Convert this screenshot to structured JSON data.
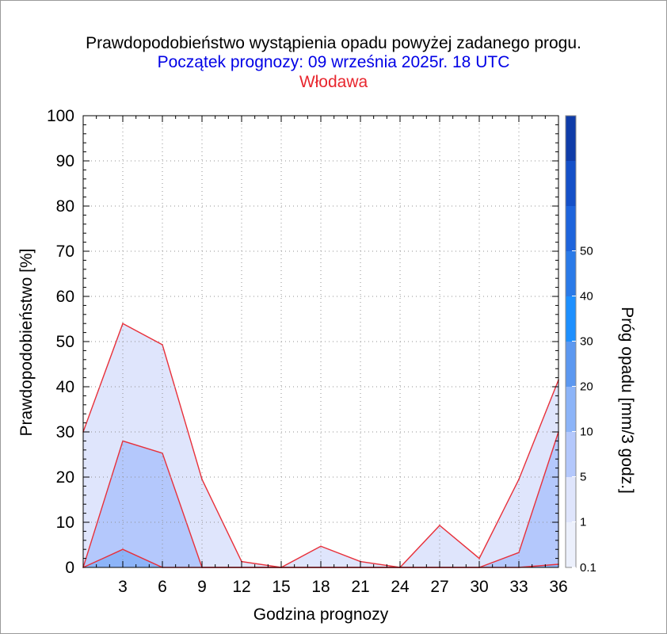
{
  "title": "Prawdopodobieństwo wystąpienia opadu powyżej zadanego progu.",
  "subtitle": "Początek prognozy: 09 września 2025r. 18 UTC",
  "station": "Włodawa",
  "chart_data": {
    "type": "area",
    "xlabel": "Godzina prognozy",
    "ylabel": "Prawdopodobieństwo [%]",
    "x": [
      0,
      3,
      6,
      9,
      12,
      15,
      18,
      21,
      24,
      27,
      30,
      33,
      36
    ],
    "x_ticks": [
      3,
      6,
      9,
      12,
      15,
      18,
      21,
      24,
      27,
      30,
      33,
      36
    ],
    "xlim": [
      0,
      36
    ],
    "ylim": [
      0,
      100
    ],
    "y_ticks": [
      0,
      10,
      20,
      30,
      40,
      50,
      60,
      70,
      80,
      90,
      100
    ],
    "grid": true,
    "series": [
      {
        "name": "0.1",
        "color": "#dfe5fc",
        "values": [
          30,
          54,
          49.3,
          19.5,
          1.3,
          0,
          4.7,
          1.3,
          0,
          9.3,
          2,
          19.5,
          41.5
        ]
      },
      {
        "name": "1",
        "color": "#b4c8fc",
        "values": [
          0,
          28,
          25.3,
          0,
          0,
          0,
          0,
          0,
          0,
          0,
          0,
          3.3,
          30
        ]
      },
      {
        "name": "5",
        "color": "#8cb4f8",
        "values": [
          0,
          4,
          0,
          0,
          0,
          0,
          0,
          0,
          0,
          0,
          0,
          0,
          0.7
        ]
      }
    ],
    "colorbar": {
      "label": "Próg opadu [mm/3 godz.]",
      "labels": [
        "0.1",
        "1",
        "5",
        "10",
        "20",
        "30",
        "40",
        "50"
      ],
      "colors": [
        "#ecf0fc",
        "#dfe5fc",
        "#b4c8fc",
        "#8cb4f8",
        "#5c98f0",
        "#1e90ff",
        "#2a7ae8",
        "#1e64dc",
        "#1450c8",
        "#0f3ca8"
      ]
    }
  }
}
